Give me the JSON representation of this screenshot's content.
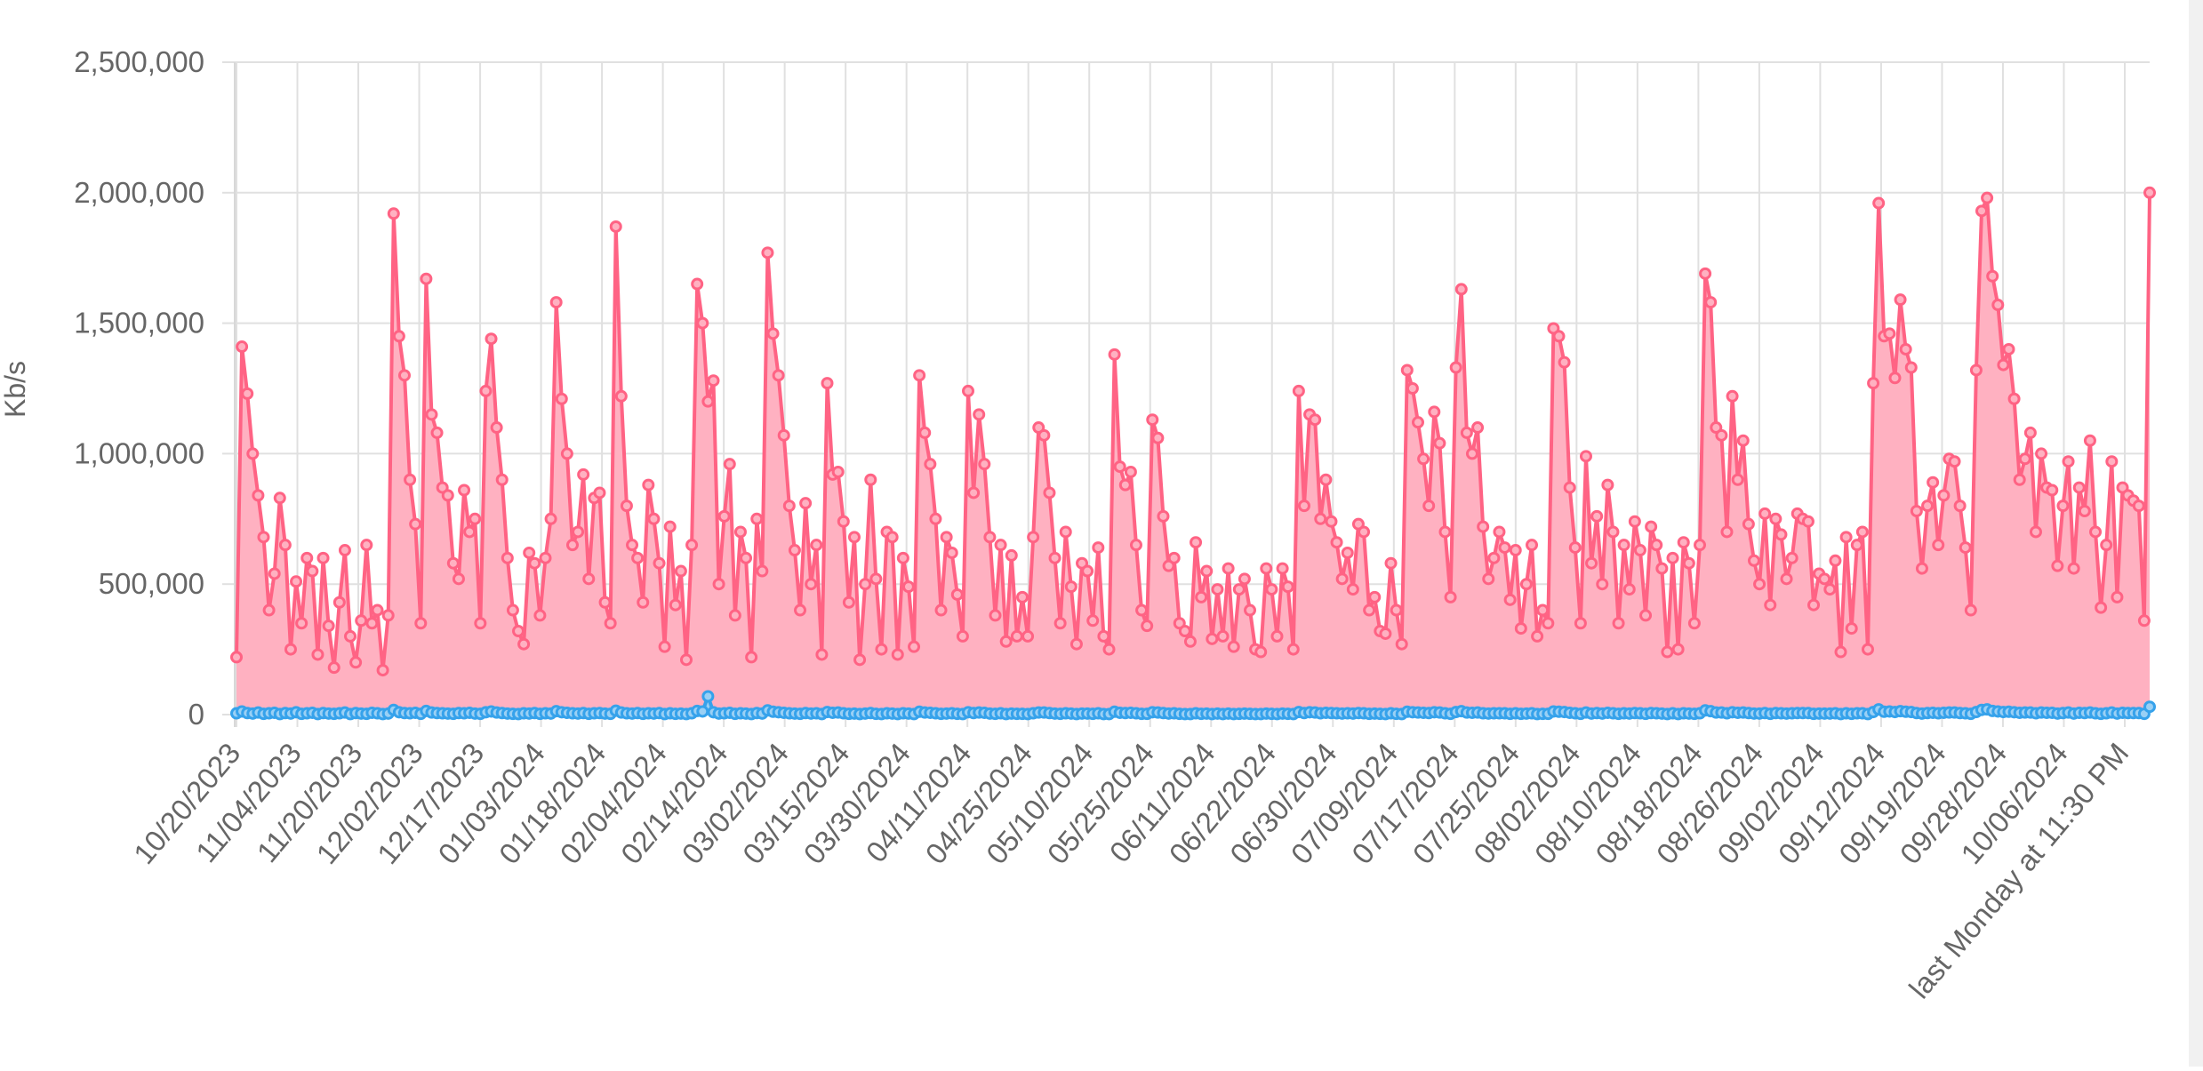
{
  "chart_data": {
    "type": "area",
    "title": "",
    "ylabel": "Kb/s",
    "xlabel": "",
    "ylim": [
      0,
      2500000
    ],
    "y_ticks": [
      0,
      500000,
      1000000,
      1500000,
      2000000,
      2500000
    ],
    "y_tick_labels": [
      "0",
      "500,000",
      "1,000,000",
      "1,500,000",
      "2,000,000",
      "2,500,000"
    ],
    "x_tick_labels": [
      "10/20/2023",
      "11/04/2023",
      "11/20/2023",
      "12/02/2023",
      "12/17/2023",
      "01/03/2024",
      "01/18/2024",
      "02/04/2024",
      "02/14/2024",
      "03/02/2024",
      "03/15/2024",
      "03/30/2024",
      "04/11/2024",
      "04/25/2024",
      "05/10/2024",
      "05/25/2024",
      "06/11/2024",
      "06/22/2024",
      "06/30/2024",
      "07/09/2024",
      "07/17/2024",
      "07/25/2024",
      "08/02/2024",
      "08/10/2024",
      "08/18/2024",
      "08/26/2024",
      "09/02/2024",
      "09/12/2024",
      "09/19/2024",
      "09/28/2024",
      "10/06/2024",
      "last Monday at 11:30 PM"
    ],
    "grid": true,
    "legend": "none",
    "series": [
      {
        "color": "#ff6384",
        "fill": "#ffb1c1",
        "values": [
          220000,
          1410000,
          1230000,
          1000000,
          840000,
          680000,
          400000,
          540000,
          830000,
          650000,
          250000,
          510000,
          350000,
          600000,
          550000,
          230000,
          600000,
          340000,
          180000,
          430000,
          630000,
          300000,
          200000,
          360000,
          650000,
          350000,
          400000,
          170000,
          380000,
          1920000,
          1450000,
          1300000,
          900000,
          730000,
          350000,
          1670000,
          1150000,
          1080000,
          870000,
          840000,
          580000,
          520000,
          860000,
          700000,
          750000,
          350000,
          1240000,
          1440000,
          1100000,
          900000,
          600000,
          400000,
          320000,
          270000,
          620000,
          580000,
          380000,
          600000,
          750000,
          1580000,
          1210000,
          1000000,
          650000,
          700000,
          920000,
          520000,
          830000,
          850000,
          430000,
          350000,
          1870000,
          1220000,
          800000,
          650000,
          600000,
          430000,
          880000,
          750000,
          580000,
          260000,
          720000,
          420000,
          550000,
          210000,
          650000,
          1650000,
          1500000,
          1200000,
          1280000,
          500000,
          760000,
          960000,
          380000,
          700000,
          600000,
          220000,
          750000,
          550000,
          1770000,
          1460000,
          1300000,
          1070000,
          800000,
          630000,
          400000,
          810000,
          500000,
          650000,
          230000,
          1270000,
          920000,
          930000,
          740000,
          430000,
          680000,
          210000,
          500000,
          900000,
          520000,
          250000,
          700000,
          680000,
          230000,
          600000,
          490000,
          260000,
          1300000,
          1080000,
          960000,
          750000,
          400000,
          680000,
          620000,
          460000,
          300000,
          1240000,
          850000,
          1150000,
          960000,
          680000,
          380000,
          650000,
          280000,
          610000,
          300000,
          450000,
          300000,
          680000,
          1100000,
          1070000,
          850000,
          600000,
          350000,
          700000,
          490000,
          270000,
          580000,
          550000,
          360000,
          640000,
          300000,
          250000,
          1380000,
          950000,
          880000,
          930000,
          650000,
          400000,
          340000,
          1130000,
          1060000,
          760000,
          570000,
          600000,
          350000,
          320000,
          280000,
          660000,
          450000,
          550000,
          290000,
          480000,
          300000,
          560000,
          260000,
          480000,
          520000,
          400000,
          250000,
          240000,
          560000,
          480000,
          300000,
          560000,
          490000,
          250000,
          1240000,
          800000,
          1150000,
          1130000,
          750000,
          900000,
          740000,
          660000,
          520000,
          620000,
          480000,
          730000,
          700000,
          400000,
          450000,
          320000,
          310000,
          580000,
          400000,
          270000,
          1320000,
          1250000,
          1120000,
          980000,
          800000,
          1160000,
          1040000,
          700000,
          450000,
          1330000,
          1630000,
          1080000,
          1000000,
          1100000,
          720000,
          520000,
          600000,
          700000,
          640000,
          440000,
          630000,
          330000,
          500000,
          650000,
          300000,
          400000,
          350000,
          1480000,
          1450000,
          1350000,
          870000,
          640000,
          350000,
          990000,
          580000,
          760000,
          500000,
          880000,
          700000,
          350000,
          650000,
          480000,
          740000,
          630000,
          380000,
          720000,
          650000,
          560000,
          240000,
          600000,
          250000,
          660000,
          580000,
          350000,
          650000,
          1690000,
          1580000,
          1100000,
          1070000,
          700000,
          1220000,
          900000,
          1050000,
          730000,
          590000,
          500000,
          770000,
          420000,
          750000,
          690000,
          520000,
          600000,
          770000,
          750000,
          740000,
          420000,
          540000,
          520000,
          480000,
          590000,
          240000,
          680000,
          330000,
          650000,
          700000,
          250000,
          1270000,
          1960000,
          1450000,
          1460000,
          1290000,
          1590000,
          1400000,
          1330000,
          780000,
          560000,
          800000,
          890000,
          650000,
          840000,
          980000,
          970000,
          800000,
          640000,
          400000,
          1320000,
          1930000,
          1980000,
          1680000,
          1570000,
          1340000,
          1400000,
          1210000,
          900000,
          980000,
          1080000,
          700000,
          1000000,
          870000,
          860000,
          570000,
          800000,
          970000,
          560000,
          870000,
          780000,
          1050000,
          700000,
          410000,
          650000,
          970000,
          450000,
          870000,
          840000,
          820000,
          800000,
          360000,
          2000000
        ]
      },
      {
        "color": "#36a2eb",
        "fill": "#9ad0f5",
        "values": [
          5000,
          12000,
          6000,
          4000,
          8000,
          3000,
          5000,
          7000,
          2000,
          6000,
          4000,
          9000,
          3000,
          5000,
          7000,
          2000,
          6000,
          4000,
          3000,
          5000,
          8000,
          2000,
          6000,
          4000,
          3000,
          7000,
          5000,
          2000,
          4000,
          18000,
          9000,
          6000,
          5000,
          7000,
          3000,
          14000,
          8000,
          6000,
          5000,
          4000,
          3000,
          6000,
          5000,
          7000,
          4000,
          3000,
          9000,
          12000,
          8000,
          6000,
          4000,
          3000,
          2000,
          5000,
          4000,
          6000,
          3000,
          5000,
          4000,
          13000,
          9000,
          7000,
          5000,
          4000,
          6000,
          3000,
          5000,
          6000,
          4000,
          3000,
          15000,
          8000,
          5000,
          4000,
          6000,
          3000,
          5000,
          4000,
          6000,
          2000,
          5000,
          3000,
          4000,
          2000,
          5000,
          14000,
          12000,
          70000,
          9000,
          4000,
          5000,
          7000,
          3000,
          5000,
          4000,
          2000,
          6000,
          4000,
          16000,
          11000,
          9000,
          7000,
          5000,
          4000,
          3000,
          6000,
          4000,
          5000,
          2000,
          10000,
          7000,
          8000,
          5000,
          3000,
          4000,
          2000,
          4000,
          6000,
          3000,
          2000,
          5000,
          4000,
          2000,
          5000,
          4000,
          2000,
          11000,
          8000,
          7000,
          5000,
          3000,
          4000,
          5000,
          3000,
          2000,
          9000,
          6000,
          8000,
          7000,
          4000,
          3000,
          5000,
          2000,
          4000,
          3000,
          3000,
          2000,
          5000,
          8000,
          8000,
          6000,
          4000,
          3000,
          5000,
          4000,
          2000,
          4000,
          4000,
          3000,
          5000,
          2000,
          2000,
          11000,
          7000,
          6000,
          7000,
          5000,
          3000,
          3000,
          9000,
          8000,
          6000,
          4000,
          5000,
          3000,
          2000,
          2000,
          5000,
          3000,
          4000,
          2000,
          4000,
          2000,
          4000,
          2000,
          3000,
          4000,
          3000,
          2000,
          2000,
          4000,
          3000,
          2000,
          4000,
          3000,
          2000,
          10000,
          6000,
          9000,
          8000,
          5000,
          7000,
          6000,
          5000,
          4000,
          5000,
          4000,
          6000,
          5000,
          3000,
          4000,
          3000,
          2000,
          5000,
          3000,
          2000,
          11000,
          9000,
          8000,
          7000,
          6000,
          9000,
          8000,
          5000,
          3000,
          10000,
          13000,
          8000,
          7000,
          8000,
          5000,
          4000,
          5000,
          5000,
          5000,
          3000,
          5000,
          3000,
          4000,
          5000,
          2000,
          3000,
          3000,
          12000,
          11000,
          10000,
          7000,
          5000,
          3000,
          8000,
          4000,
          6000,
          4000,
          7000,
          5000,
          3000,
          5000,
          4000,
          6000,
          5000,
          3000,
          6000,
          5000,
          4000,
          2000,
          5000,
          2000,
          5000,
          4000,
          3000,
          5000,
          16000,
          13000,
          8000,
          8000,
          5000,
          9000,
          7000,
          8000,
          6000,
          4000,
          4000,
          6000,
          3000,
          6000,
          5000,
          4000,
          5000,
          6000,
          6000,
          6000,
          3000,
          4000,
          4000,
          4000,
          5000,
          2000,
          5000,
          3000,
          5000,
          5000,
          2000,
          10000,
          20000,
          11000,
          12000,
          10000,
          13000,
          11000,
          10000,
          6000,
          4000,
          6000,
          7000,
          5000,
          7000,
          8000,
          8000,
          6000,
          5000,
          3000,
          10000,
          18000,
          20000,
          14000,
          12000,
          10000,
          11000,
          9000,
          7000,
          8000,
          8000,
          5000,
          8000,
          7000,
          7000,
          4000,
          6000,
          8000,
          4000,
          7000,
          6000,
          8000,
          5000,
          3000,
          5000,
          8000,
          4000,
          7000,
          6000,
          6000,
          6000,
          3000,
          30000
        ]
      }
    ]
  }
}
